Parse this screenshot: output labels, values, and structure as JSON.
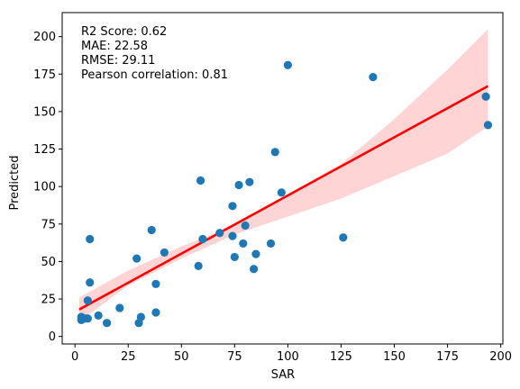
{
  "chart_data": {
    "type": "scatter",
    "xlabel": "SAR",
    "ylabel": "Predicted",
    "xlim": [
      -6,
      201
    ],
    "ylim": [
      -5,
      216
    ],
    "xticks": [
      0,
      25,
      50,
      75,
      100,
      125,
      150,
      175,
      200
    ],
    "yticks": [
      0,
      25,
      50,
      75,
      100,
      125,
      150,
      175,
      200
    ],
    "grid": false,
    "annotations": [
      "R2 Score: 0.62",
      "MAE: 22.58",
      "RMSE: 29.11",
      "Pearson correlation: 0.81"
    ],
    "annotation_position": "top-left",
    "colors": {
      "points": "#1f77b4",
      "regression_line": "#ff0000",
      "confidence_band": "#ffcccc"
    },
    "series": [
      {
        "type": "scatter",
        "points": [
          [
            3,
            11
          ],
          [
            3,
            13
          ],
          [
            5,
            12
          ],
          [
            6,
            12
          ],
          [
            6,
            24
          ],
          [
            7,
            36
          ],
          [
            7,
            65
          ],
          [
            11,
            14
          ],
          [
            15,
            9
          ],
          [
            21,
            19
          ],
          [
            29,
            52
          ],
          [
            30,
            9
          ],
          [
            31,
            13
          ],
          [
            36,
            71
          ],
          [
            38,
            35
          ],
          [
            38,
            16
          ],
          [
            42,
            56
          ],
          [
            58,
            47
          ],
          [
            59,
            104
          ],
          [
            60,
            65
          ],
          [
            68,
            69
          ],
          [
            74,
            87
          ],
          [
            74,
            67
          ],
          [
            75,
            53
          ],
          [
            77,
            101
          ],
          [
            79,
            62
          ],
          [
            80,
            74
          ],
          [
            82,
            103
          ],
          [
            84,
            45
          ],
          [
            85,
            55
          ],
          [
            92,
            62
          ],
          [
            94,
            123
          ],
          [
            97,
            96
          ],
          [
            100,
            181
          ],
          [
            126,
            66
          ],
          [
            140,
            173
          ],
          [
            193,
            160
          ],
          [
            194,
            141
          ]
        ]
      },
      {
        "type": "line",
        "x": [
          2,
          194
        ],
        "y": [
          18,
          167
        ]
      },
      {
        "type": "band",
        "x": [
          2,
          25,
          50,
          75,
          100,
          125,
          150,
          175,
          194
        ],
        "lower": [
          10,
          34,
          52,
          68,
          80,
          92,
          107,
          122,
          140
        ],
        "upper": [
          26,
          44,
          60,
          74,
          95,
          115,
          145,
          178,
          205
        ]
      }
    ]
  }
}
